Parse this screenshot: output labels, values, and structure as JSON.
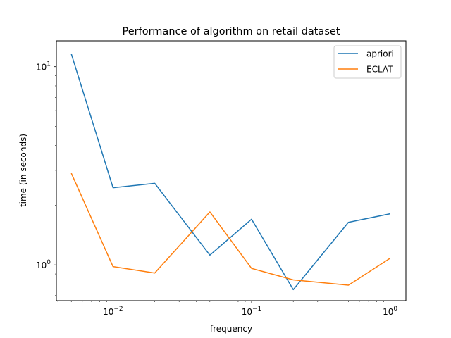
{
  "chart_data": {
    "type": "line",
    "title": "Performance of algorithm on retail dataset",
    "xlabel": "frequency",
    "ylabel": "time (in seconds)",
    "xscale": "log",
    "yscale": "log",
    "xlim": [
      0.0039,
      1.3
    ],
    "ylim": [
      0.66,
      13.5
    ],
    "grid": false,
    "legend_position": "top-right",
    "x_ticks": [
      {
        "value": 0.01,
        "label": "10",
        "exp": "−2"
      },
      {
        "value": 0.1,
        "label": "10",
        "exp": "−1"
      },
      {
        "value": 1,
        "label": "10",
        "exp": "0"
      }
    ],
    "y_ticks": [
      {
        "value": 1,
        "label": "10",
        "exp": "0"
      },
      {
        "value": 10,
        "label": "10",
        "exp": "1"
      }
    ],
    "x": [
      0.005,
      0.01,
      0.02,
      0.05,
      0.1,
      0.2,
      0.5,
      1.0
    ],
    "series": [
      {
        "name": "apriori",
        "color": "#1f77b4",
        "values": [
          11.6,
          2.45,
          2.58,
          1.12,
          1.7,
          0.75,
          1.64,
          1.81
        ]
      },
      {
        "name": "ECLAT",
        "color": "#ff7f0e",
        "values": [
          2.9,
          0.98,
          0.91,
          1.85,
          0.96,
          0.84,
          0.79,
          1.08
        ]
      }
    ]
  }
}
